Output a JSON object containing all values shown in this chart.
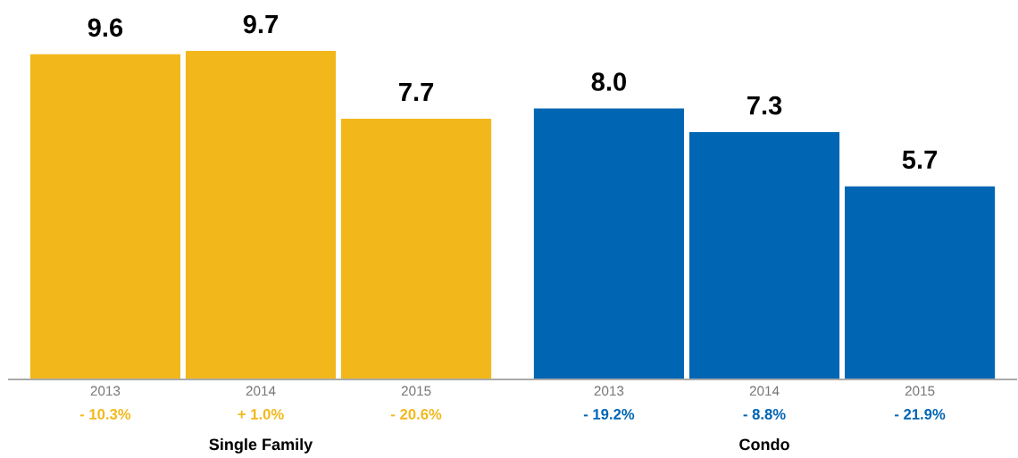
{
  "chart_data": [
    {
      "type": "bar",
      "categories": [
        "2013",
        "2014",
        "2015"
      ],
      "values": [
        9.6,
        9.7,
        7.7
      ],
      "value_labels": [
        "9.6",
        "9.7",
        "7.7"
      ],
      "color": "#f2b81b",
      "xlabel": "Single Family",
      "annotations": [
        "- 10.3%",
        "+ 1.0%",
        "- 20.6%"
      ]
    },
    {
      "type": "bar",
      "categories": [
        "2013",
        "2014",
        "2015"
      ],
      "values": [
        8.0,
        7.3,
        5.7
      ],
      "value_labels": [
        "8.0",
        "7.3",
        "5.7"
      ],
      "color": "#0065b3",
      "xlabel": "Condo",
      "annotations": [
        "- 19.2%",
        "- 8.8%",
        "- 21.9%"
      ]
    }
  ]
}
